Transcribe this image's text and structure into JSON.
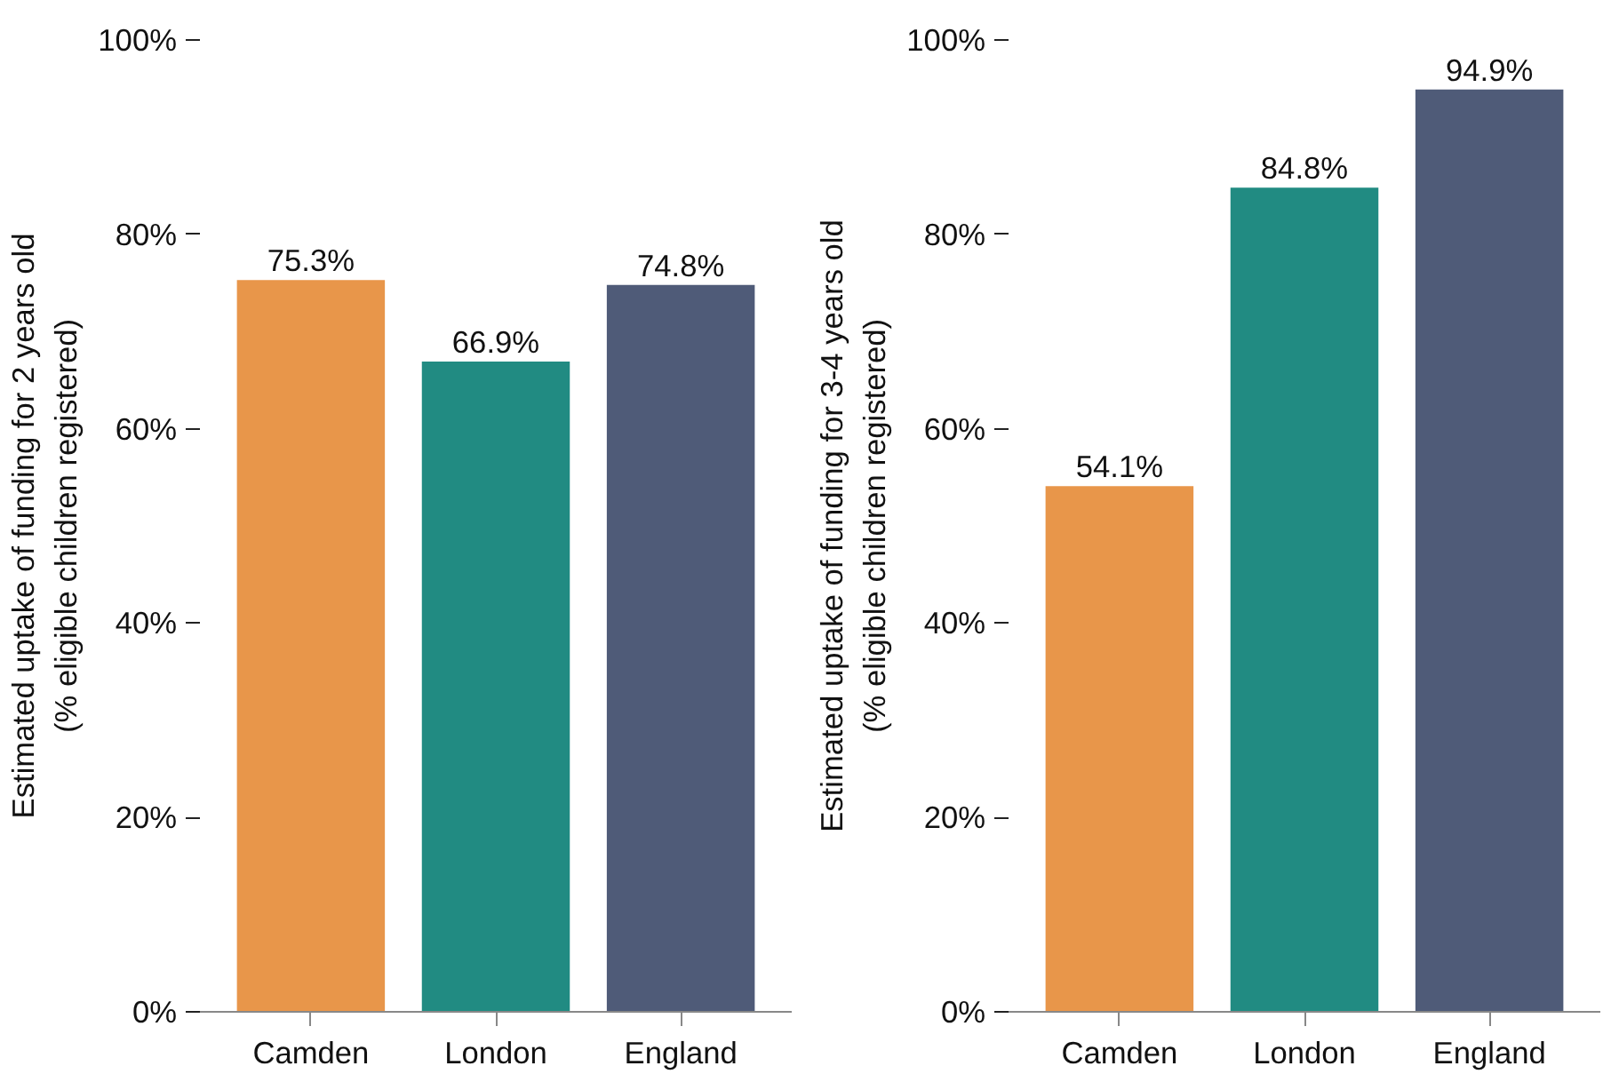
{
  "chart_data": [
    {
      "type": "bar",
      "ylabel": "Estimated uptake of funding for 2 years old\n(% eligible children registered)",
      "categories": [
        "Camden",
        "London",
        "England"
      ],
      "values": [
        75.3,
        66.9,
        74.8
      ],
      "colors": [
        "#e8964a",
        "#218b82",
        "#4f5b78"
      ],
      "value_labels": [
        "75.3%",
        "66.9%",
        "74.8%"
      ],
      "ylim": [
        0,
        100
      ],
      "yticks": [
        {
          "value": 0,
          "label": "0%"
        },
        {
          "value": 20,
          "label": "20%"
        },
        {
          "value": 40,
          "label": "40%"
        },
        {
          "value": 60,
          "label": "60%"
        },
        {
          "value": 80,
          "label": "80%"
        },
        {
          "value": 100,
          "label": "100%"
        }
      ],
      "grid": false
    },
    {
      "type": "bar",
      "ylabel": "Estimated uptake of funding for 3-4 years old\n(% eligible children registered)",
      "categories": [
        "Camden",
        "London",
        "England"
      ],
      "values": [
        54.1,
        84.8,
        94.9
      ],
      "colors": [
        "#e8964a",
        "#218b82",
        "#4f5b78"
      ],
      "value_labels": [
        "54.1%",
        "84.8%",
        "94.9%"
      ],
      "ylim": [
        0,
        100
      ],
      "yticks": [
        {
          "value": 0,
          "label": "0%"
        },
        {
          "value": 20,
          "label": "20%"
        },
        {
          "value": 40,
          "label": "40%"
        },
        {
          "value": 60,
          "label": "60%"
        },
        {
          "value": 80,
          "label": "80%"
        },
        {
          "value": 100,
          "label": "100%"
        }
      ],
      "grid": false
    }
  ]
}
